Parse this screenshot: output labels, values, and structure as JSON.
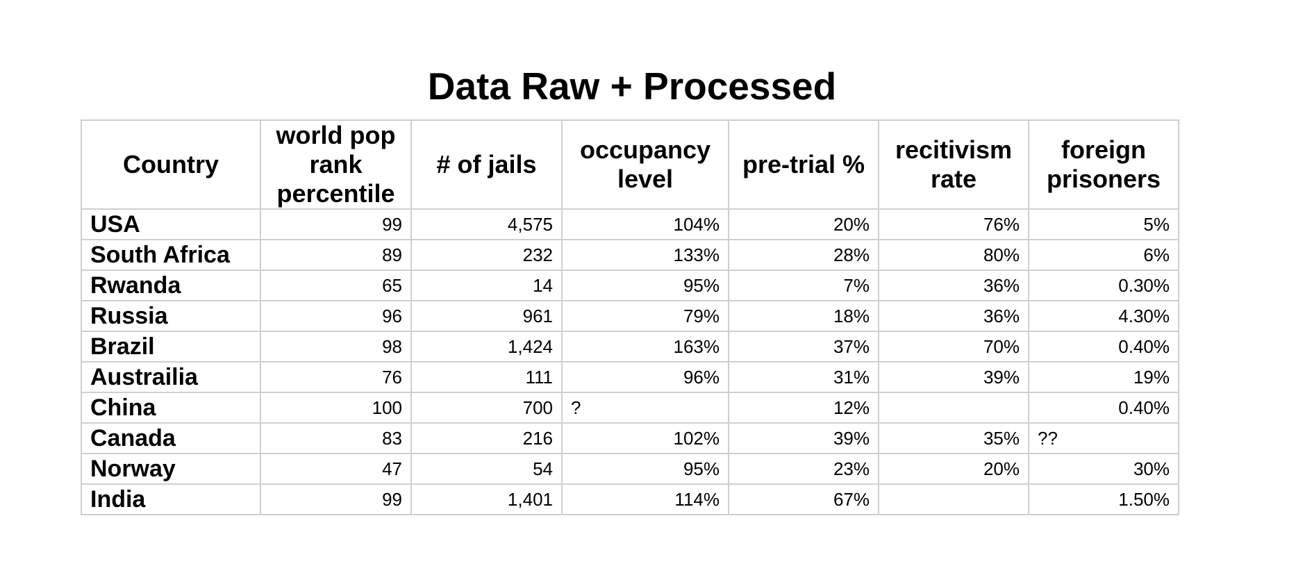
{
  "title": "Data Raw + Processed",
  "table": {
    "columns": [
      "Country",
      "world pop rank percentile",
      "# of jails",
      "occupancy level",
      "pre-trial %",
      "recitivism rate",
      "foreign prisoners"
    ],
    "rows": [
      [
        "USA",
        "99",
        "4,575",
        "104%",
        "20%",
        "76%",
        "5%"
      ],
      [
        "South Africa",
        "89",
        "232",
        "133%",
        "28%",
        "80%",
        "6%"
      ],
      [
        "Rwanda",
        "65",
        "14",
        "95%",
        "7%",
        "36%",
        "0.30%"
      ],
      [
        "Russia",
        "96",
        "961",
        "79%",
        "18%",
        "36%",
        "4.30%"
      ],
      [
        "Brazil",
        "98",
        "1,424",
        "163%",
        "37%",
        "70%",
        "0.40%"
      ],
      [
        "Austrailia",
        "76",
        "111",
        "96%",
        "31%",
        "39%",
        "19%"
      ],
      [
        "China",
        "100",
        "700",
        "?",
        "12%",
        "",
        "0.40%"
      ],
      [
        "Canada",
        "83",
        "216",
        "102%",
        "39%",
        "35%",
        "??"
      ],
      [
        "Norway",
        "47",
        "54",
        "95%",
        "23%",
        "20%",
        "30%"
      ],
      [
        "India",
        "99",
        "1,401",
        "114%",
        "67%",
        "",
        "1.50%"
      ]
    ]
  }
}
